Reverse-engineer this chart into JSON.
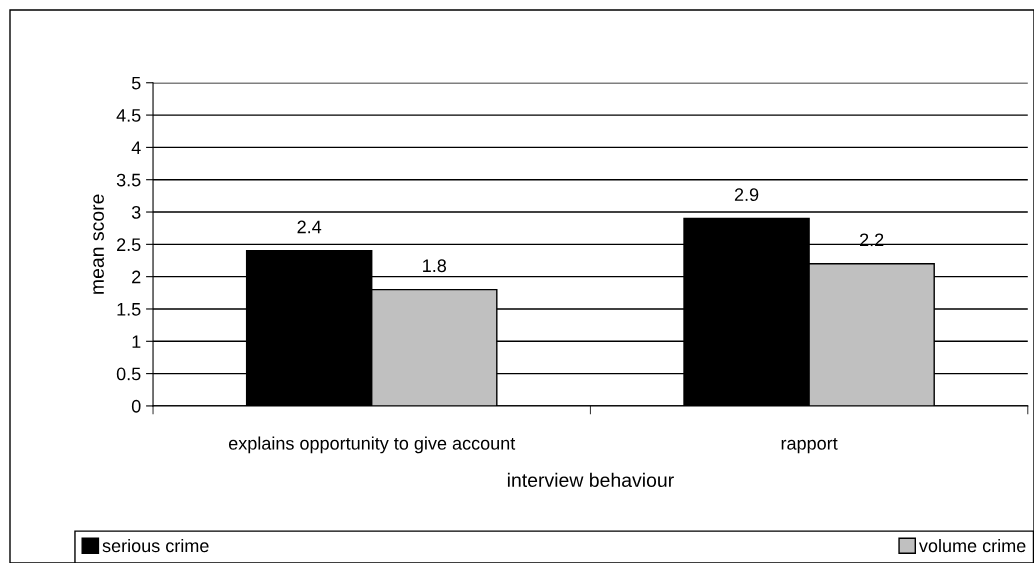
{
  "chart_data": {
    "type": "bar",
    "xlabel": "interview behaviour",
    "ylabel": "mean score",
    "categories": [
      "explains opportunity to give account",
      "rapport"
    ],
    "series": [
      {
        "name": "serious crime",
        "color": "#000000",
        "values": [
          2.4,
          2.9
        ]
      },
      {
        "name": "volume crime",
        "color": "#c0c0c0",
        "values": [
          1.8,
          2.2
        ]
      }
    ],
    "ylim": [
      0,
      5
    ],
    "yticks": [
      0,
      0.5,
      1,
      1.5,
      2,
      2.5,
      3,
      3.5,
      4,
      4.5,
      5
    ],
    "grid": "y",
    "legend": "bottom",
    "data_labels": true
  }
}
